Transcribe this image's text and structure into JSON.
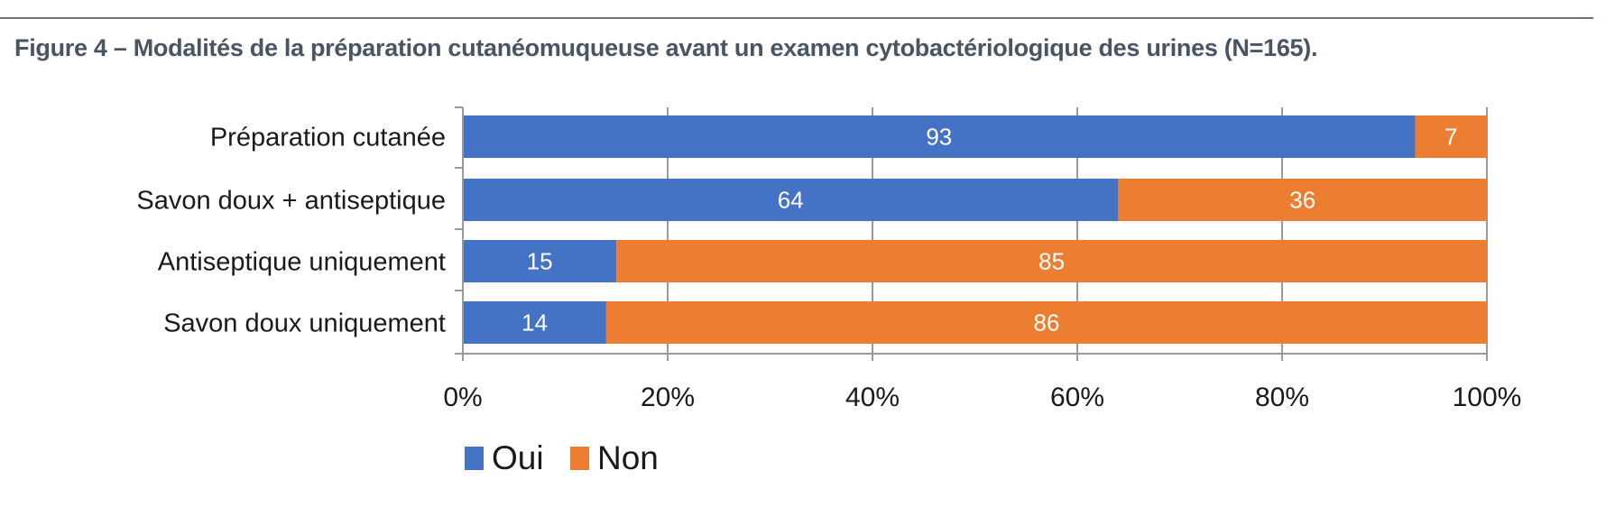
{
  "figure": {
    "title": "Figure 4 – Modalités de la préparation cutanéomuqueuse avant un examen cytobactériologique des urines (N=165)."
  },
  "colors": {
    "oui": "#4472c4",
    "non": "#ed7d31",
    "grid": "#9a9a9a",
    "rule": "#6b7380"
  },
  "chart_data": {
    "type": "bar",
    "orientation": "horizontal",
    "stacked": true,
    "categories": [
      "Préparation cutanée",
      "Savon doux + antiseptique",
      "Antiseptique uniquement",
      "Savon doux uniquement"
    ],
    "series": [
      {
        "name": "Oui",
        "color": "#4472c4",
        "values": [
          93,
          64,
          15,
          14
        ]
      },
      {
        "name": "Non",
        "color": "#ed7d31",
        "values": [
          7,
          36,
          85,
          86
        ]
      }
    ],
    "xlim": [
      0,
      100
    ],
    "xticks": [
      "0%",
      "20%",
      "40%",
      "60%",
      "80%",
      "100%"
    ],
    "xlabel": "",
    "ylabel": "",
    "grid": true,
    "legend_position": "bottom",
    "data_labels": true
  }
}
